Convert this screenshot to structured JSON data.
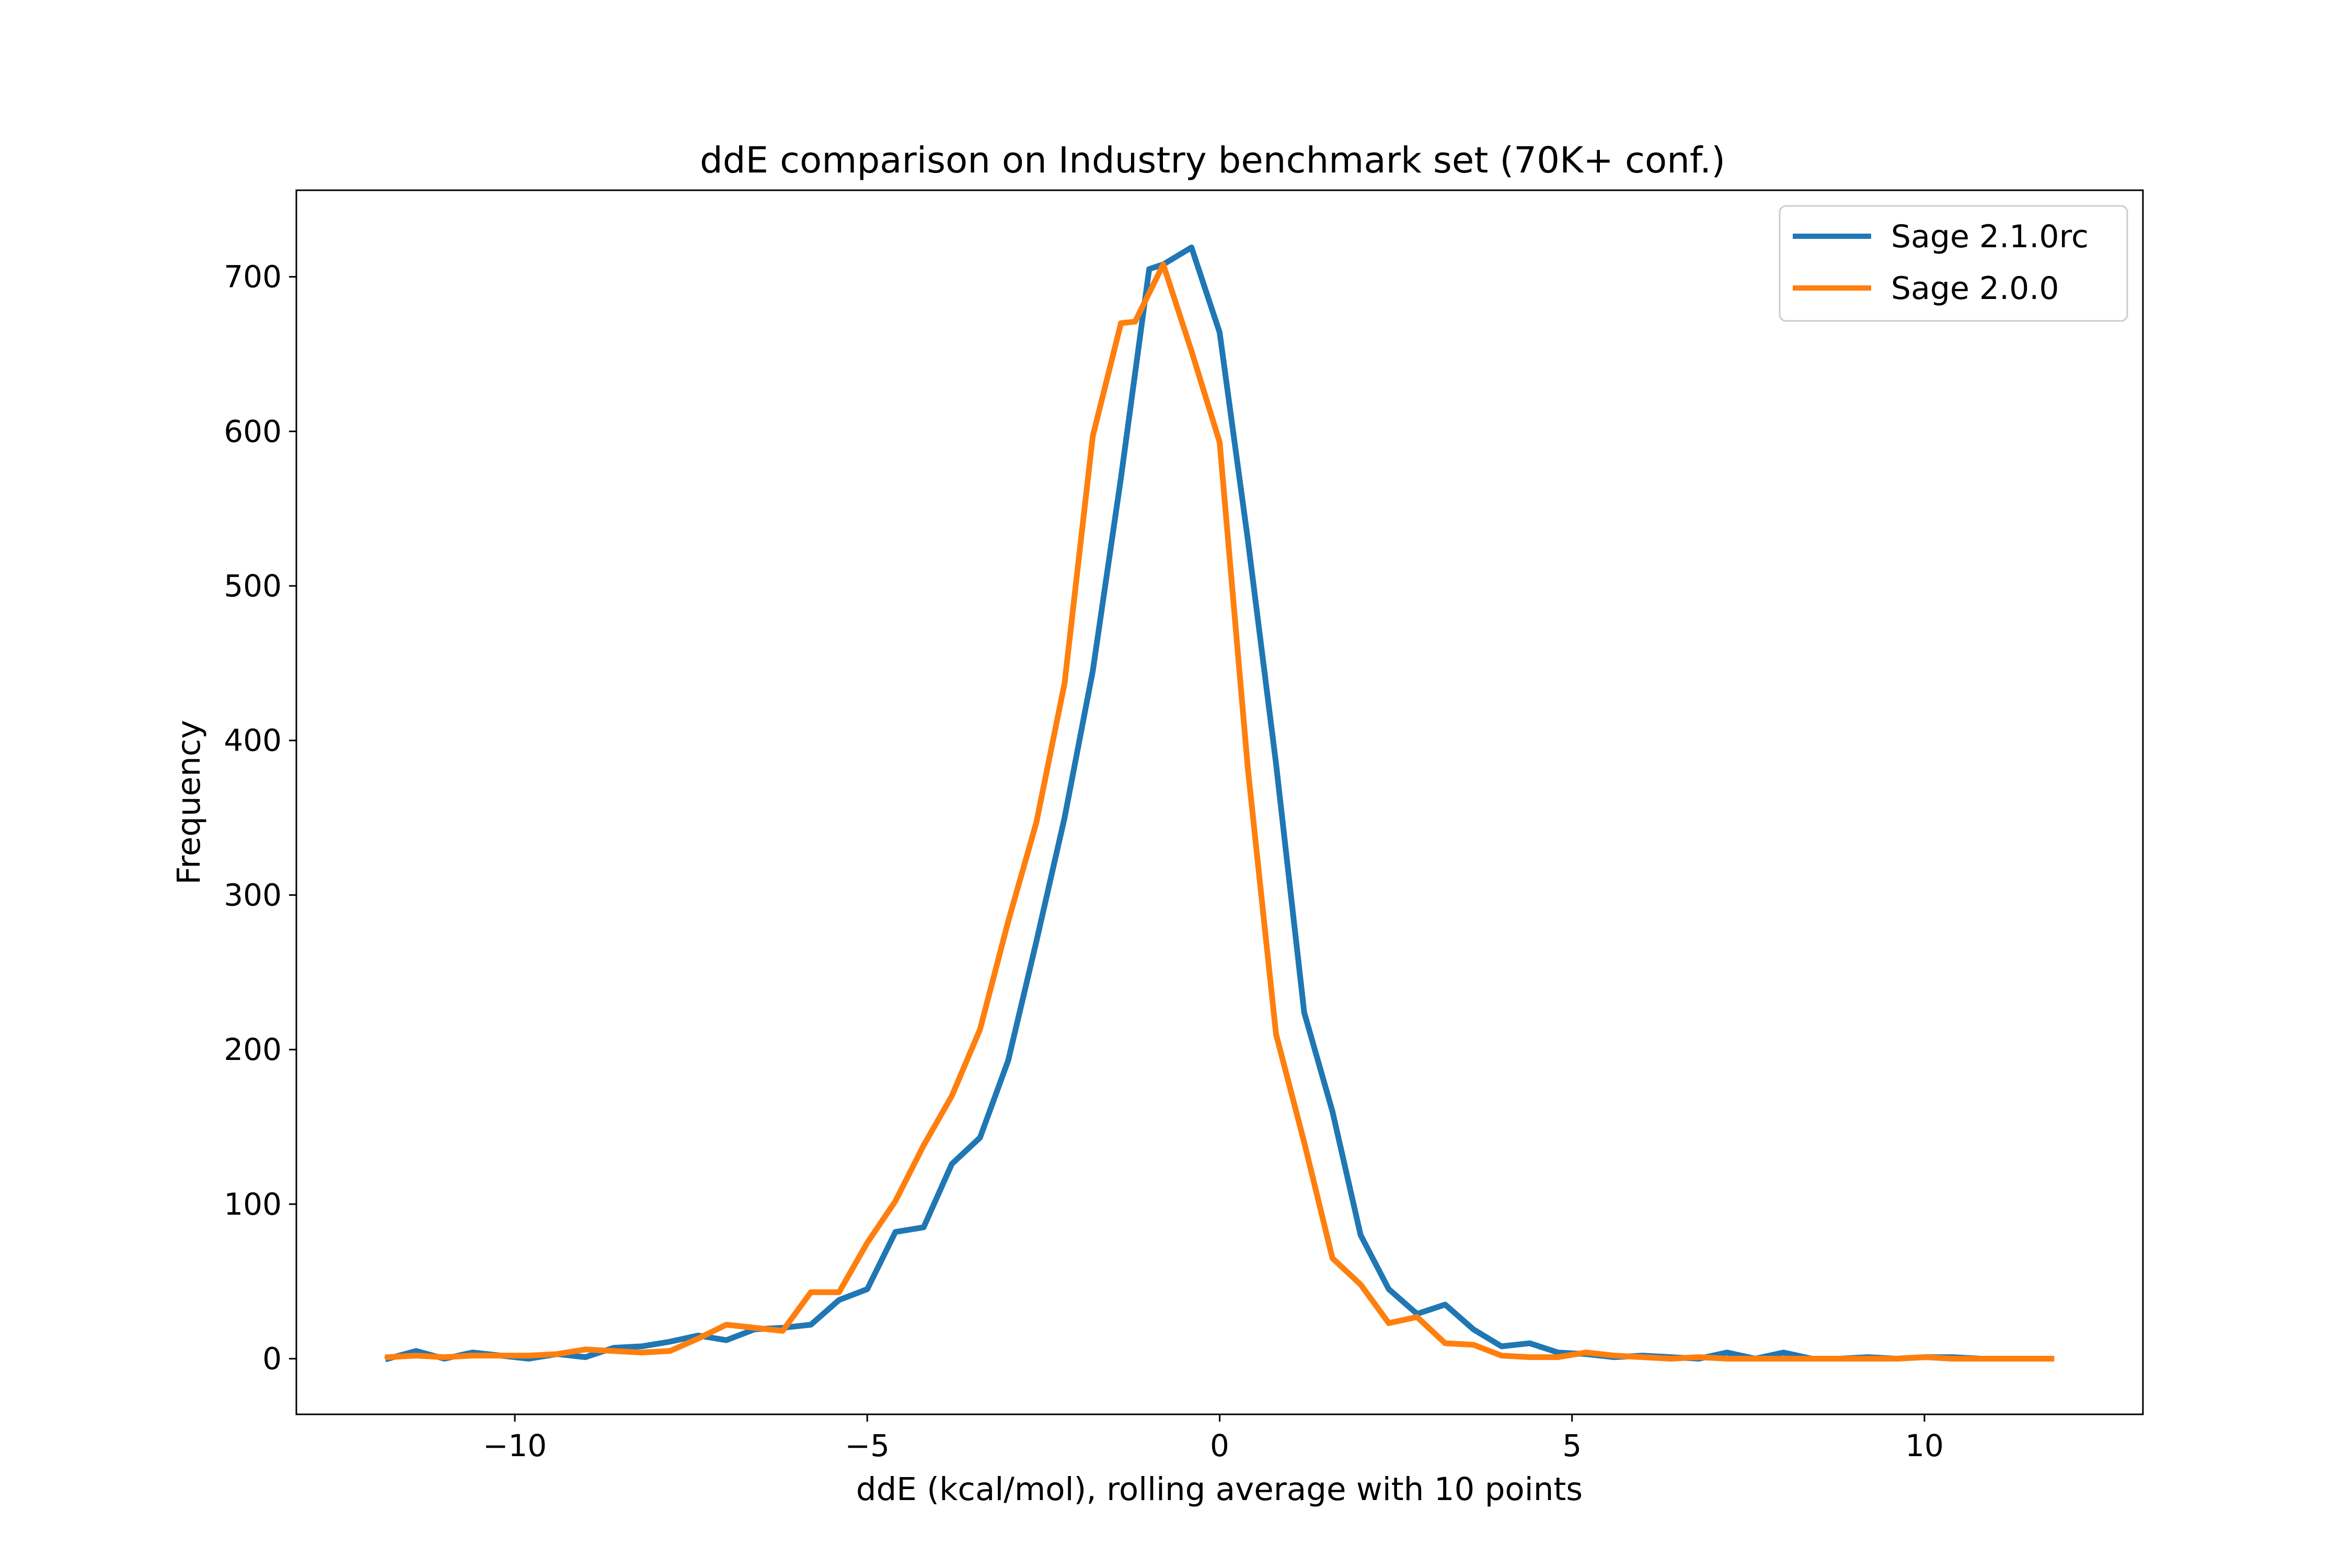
{
  "chart_data": {
    "type": "line",
    "title": "ddE comparison on Industry benchmark set (70K+ conf.)",
    "xlabel": "ddE (kcal/mol), rolling average with 10 points",
    "ylabel": "Frequency",
    "xlim": [
      -13.1,
      13.1
    ],
    "ylim": [
      -36,
      756
    ],
    "xticks": [
      -10,
      -5,
      0,
      5,
      10
    ],
    "xtick_labels": [
      "−10",
      "−5",
      "0",
      "5",
      "10"
    ],
    "yticks": [
      0,
      100,
      200,
      300,
      400,
      500,
      600,
      700
    ],
    "ytick_labels": [
      "0",
      "100",
      "200",
      "300",
      "400",
      "500",
      "600",
      "700"
    ],
    "grid": false,
    "legend_position": "top-right",
    "series": [
      {
        "name": "Sage 2.1.0rc",
        "color": "#1f77b4",
        "x": [
          -11.8,
          -11.4,
          -11.0,
          -10.6,
          -10.2,
          -9.8,
          -9.4,
          -9.0,
          -8.6,
          -8.2,
          -7.8,
          -7.4,
          -7.0,
          -6.6,
          -6.2,
          -5.8,
          -5.4,
          -5.0,
          -4.6,
          -4.2,
          -3.8,
          -3.4,
          -3.0,
          -2.6,
          -2.2,
          -1.8,
          -1.4,
          -1.0,
          -0.8,
          -0.4,
          0.0,
          0.4,
          0.8,
          1.2,
          1.6,
          2.0,
          2.4,
          2.8,
          3.2,
          3.6,
          4.0,
          4.4,
          4.8,
          5.2,
          5.6,
          6.0,
          6.4,
          6.8,
          7.2,
          7.6,
          8.0,
          8.4,
          8.8,
          9.2,
          9.6,
          10.0,
          10.4,
          10.8,
          11.2,
          11.8
        ],
        "y": [
          0,
          5,
          0,
          4,
          2,
          0,
          3,
          1,
          7,
          8,
          11,
          15,
          12,
          19,
          20,
          22,
          38,
          45,
          82,
          85,
          126,
          143,
          193,
          270,
          350,
          445,
          570,
          705,
          708,
          719,
          664,
          530,
          385,
          224,
          160,
          80,
          45,
          29,
          35,
          19,
          8,
          10,
          4,
          3,
          1,
          2,
          1,
          0,
          4,
          0,
          4,
          0,
          0,
          1,
          0,
          1,
          1,
          0,
          0,
          0
        ]
      },
      {
        "name": "Sage 2.0.0",
        "color": "#ff7f0e",
        "x": [
          -11.8,
          -11.4,
          -11.0,
          -10.6,
          -10.2,
          -9.8,
          -9.4,
          -9.0,
          -8.6,
          -8.2,
          -7.8,
          -7.4,
          -7.0,
          -6.6,
          -6.2,
          -5.8,
          -5.4,
          -5.0,
          -4.6,
          -4.2,
          -3.8,
          -3.4,
          -3.0,
          -2.6,
          -2.2,
          -1.8,
          -1.4,
          -1.2,
          -0.8,
          -0.4,
          0.0,
          0.4,
          0.8,
          1.2,
          1.6,
          2.0,
          2.4,
          2.8,
          3.2,
          3.6,
          4.0,
          4.4,
          4.8,
          5.2,
          5.6,
          6.0,
          6.4,
          6.8,
          7.2,
          7.6,
          8.0,
          8.4,
          8.8,
          9.2,
          9.6,
          10.0,
          10.4,
          10.8,
          11.2,
          11.8
        ],
        "y": [
          1,
          2,
          1,
          2,
          2,
          2,
          3,
          6,
          5,
          4,
          5,
          13,
          22,
          20,
          18,
          43,
          43,
          75,
          102,
          138,
          170,
          213,
          283,
          347,
          437,
          597,
          670,
          671,
          708,
          652,
          593,
          382,
          210,
          140,
          65,
          48,
          23,
          27,
          10,
          9,
          2,
          1,
          1,
          4,
          2,
          1,
          0,
          1,
          0,
          0,
          0,
          0,
          0,
          0,
          0,
          1,
          0,
          0,
          0,
          0
        ]
      }
    ]
  }
}
